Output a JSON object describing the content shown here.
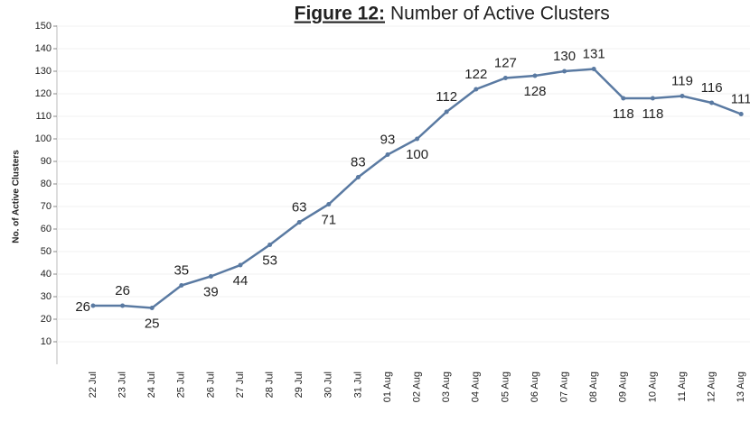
{
  "chart_data": {
    "type": "line",
    "title": {
      "bold": "Figure 12:",
      "text": "Number of Active Clusters"
    },
    "y_label": "No. of Active Clusters",
    "categories": [
      "22 Jul",
      "23 Jul",
      "24 Jul",
      "25 Jul",
      "26 Jul",
      "27 Jul",
      "28 Jul",
      "29 Jul",
      "30 Jul",
      "31 Jul",
      "01 Aug",
      "02 Aug",
      "03 Aug",
      "04 Aug",
      "05 Aug",
      "06 Aug",
      "07 Aug",
      "08 Aug",
      "09 Aug",
      "10 Aug",
      "11 Aug",
      "12 Aug",
      "13 Aug"
    ],
    "series": [
      {
        "name": "Active Clusters",
        "color": "#5a7aa2",
        "values": [
          26,
          26,
          25,
          35,
          39,
          44,
          53,
          63,
          71,
          83,
          93,
          100,
          112,
          122,
          127,
          128,
          130,
          131,
          118,
          118,
          119,
          116,
          111
        ]
      }
    ],
    "ylim": [
      0,
      150
    ],
    "yticks": [
      10,
      20,
      30,
      40,
      50,
      60,
      70,
      80,
      90,
      100,
      110,
      120,
      130,
      140,
      150
    ],
    "grid": true
  }
}
